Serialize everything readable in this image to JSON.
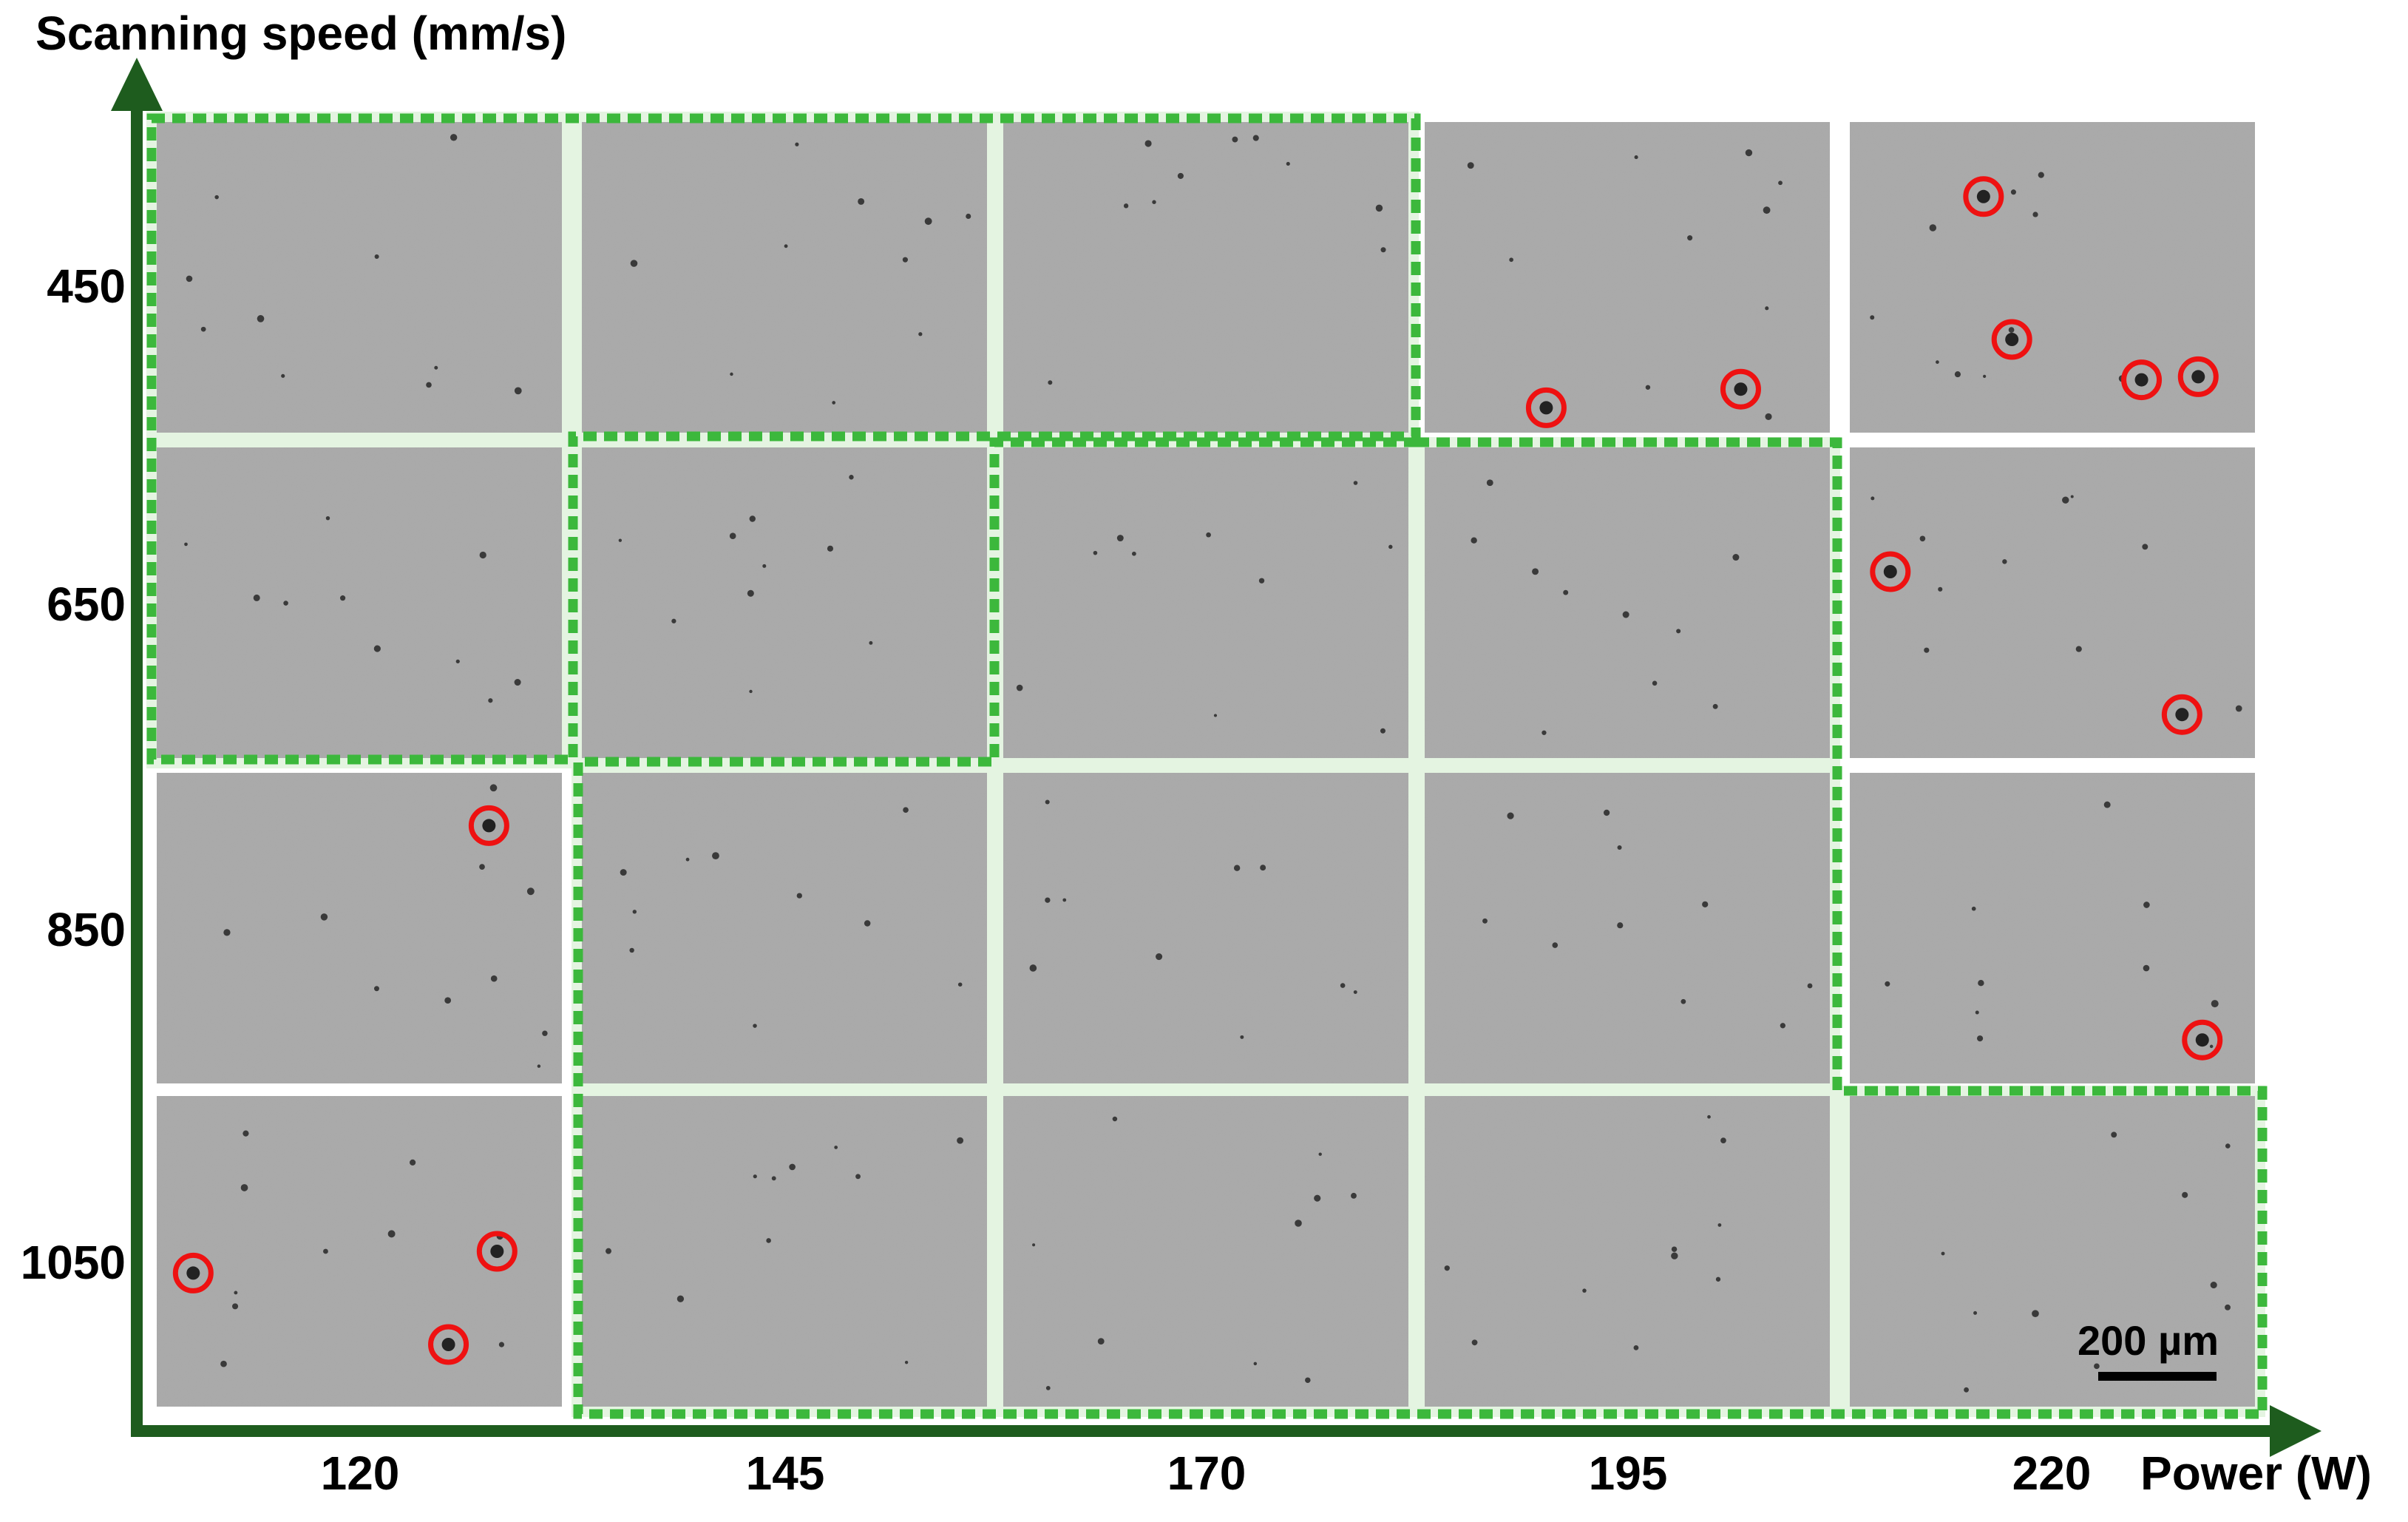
{
  "axes": {
    "y_title": "Scanning speed (mm/s)",
    "x_title": "Power (W)",
    "y_ticks": [
      "450",
      "650",
      "850",
      "1050"
    ],
    "x_ticks": [
      "120",
      "145",
      "170",
      "195",
      "220"
    ]
  },
  "scale_bar": {
    "label": "200 µm"
  },
  "colors": {
    "axis": "#1e5c1e",
    "highlight_border": "#3cb83c",
    "highlight_fill": "#e4f4e1",
    "tile": "#a8a8a8",
    "defect_circle": "#ee1111"
  },
  "grid": {
    "rows": 4,
    "cols": 5,
    "highlighted_cells": [
      [
        0,
        0
      ],
      [
        0,
        1
      ],
      [
        0,
        2
      ],
      [
        1,
        0
      ],
      [
        1,
        1
      ],
      [
        1,
        2
      ],
      [
        1,
        3
      ],
      [
        2,
        1
      ],
      [
        2,
        2
      ],
      [
        2,
        3
      ],
      [
        3,
        1
      ],
      [
        3,
        2
      ],
      [
        3,
        3
      ],
      [
        3,
        4
      ]
    ],
    "highlight_regions": [
      {
        "name": "region-low-speed",
        "cells": "row 450: 120–170 W; row 650: 120–145 W"
      },
      {
        "name": "region-mid-speed",
        "cells": "rows 650–1050 at 170–195 W"
      },
      {
        "name": "region-high-speed",
        "cells": "rows 850–1050 at 145 W; row 1050 at 220 W"
      }
    ]
  },
  "defects": [
    {
      "speed": "450",
      "power": "195",
      "count": 2
    },
    {
      "speed": "450",
      "power": "220",
      "count": 4
    },
    {
      "speed": "650",
      "power": "220",
      "count": 2
    },
    {
      "speed": "850",
      "power": "120",
      "count": 1
    },
    {
      "speed": "850",
      "power": "220",
      "count": 1
    },
    {
      "speed": "1050",
      "power": "120",
      "count": 3
    }
  ]
}
